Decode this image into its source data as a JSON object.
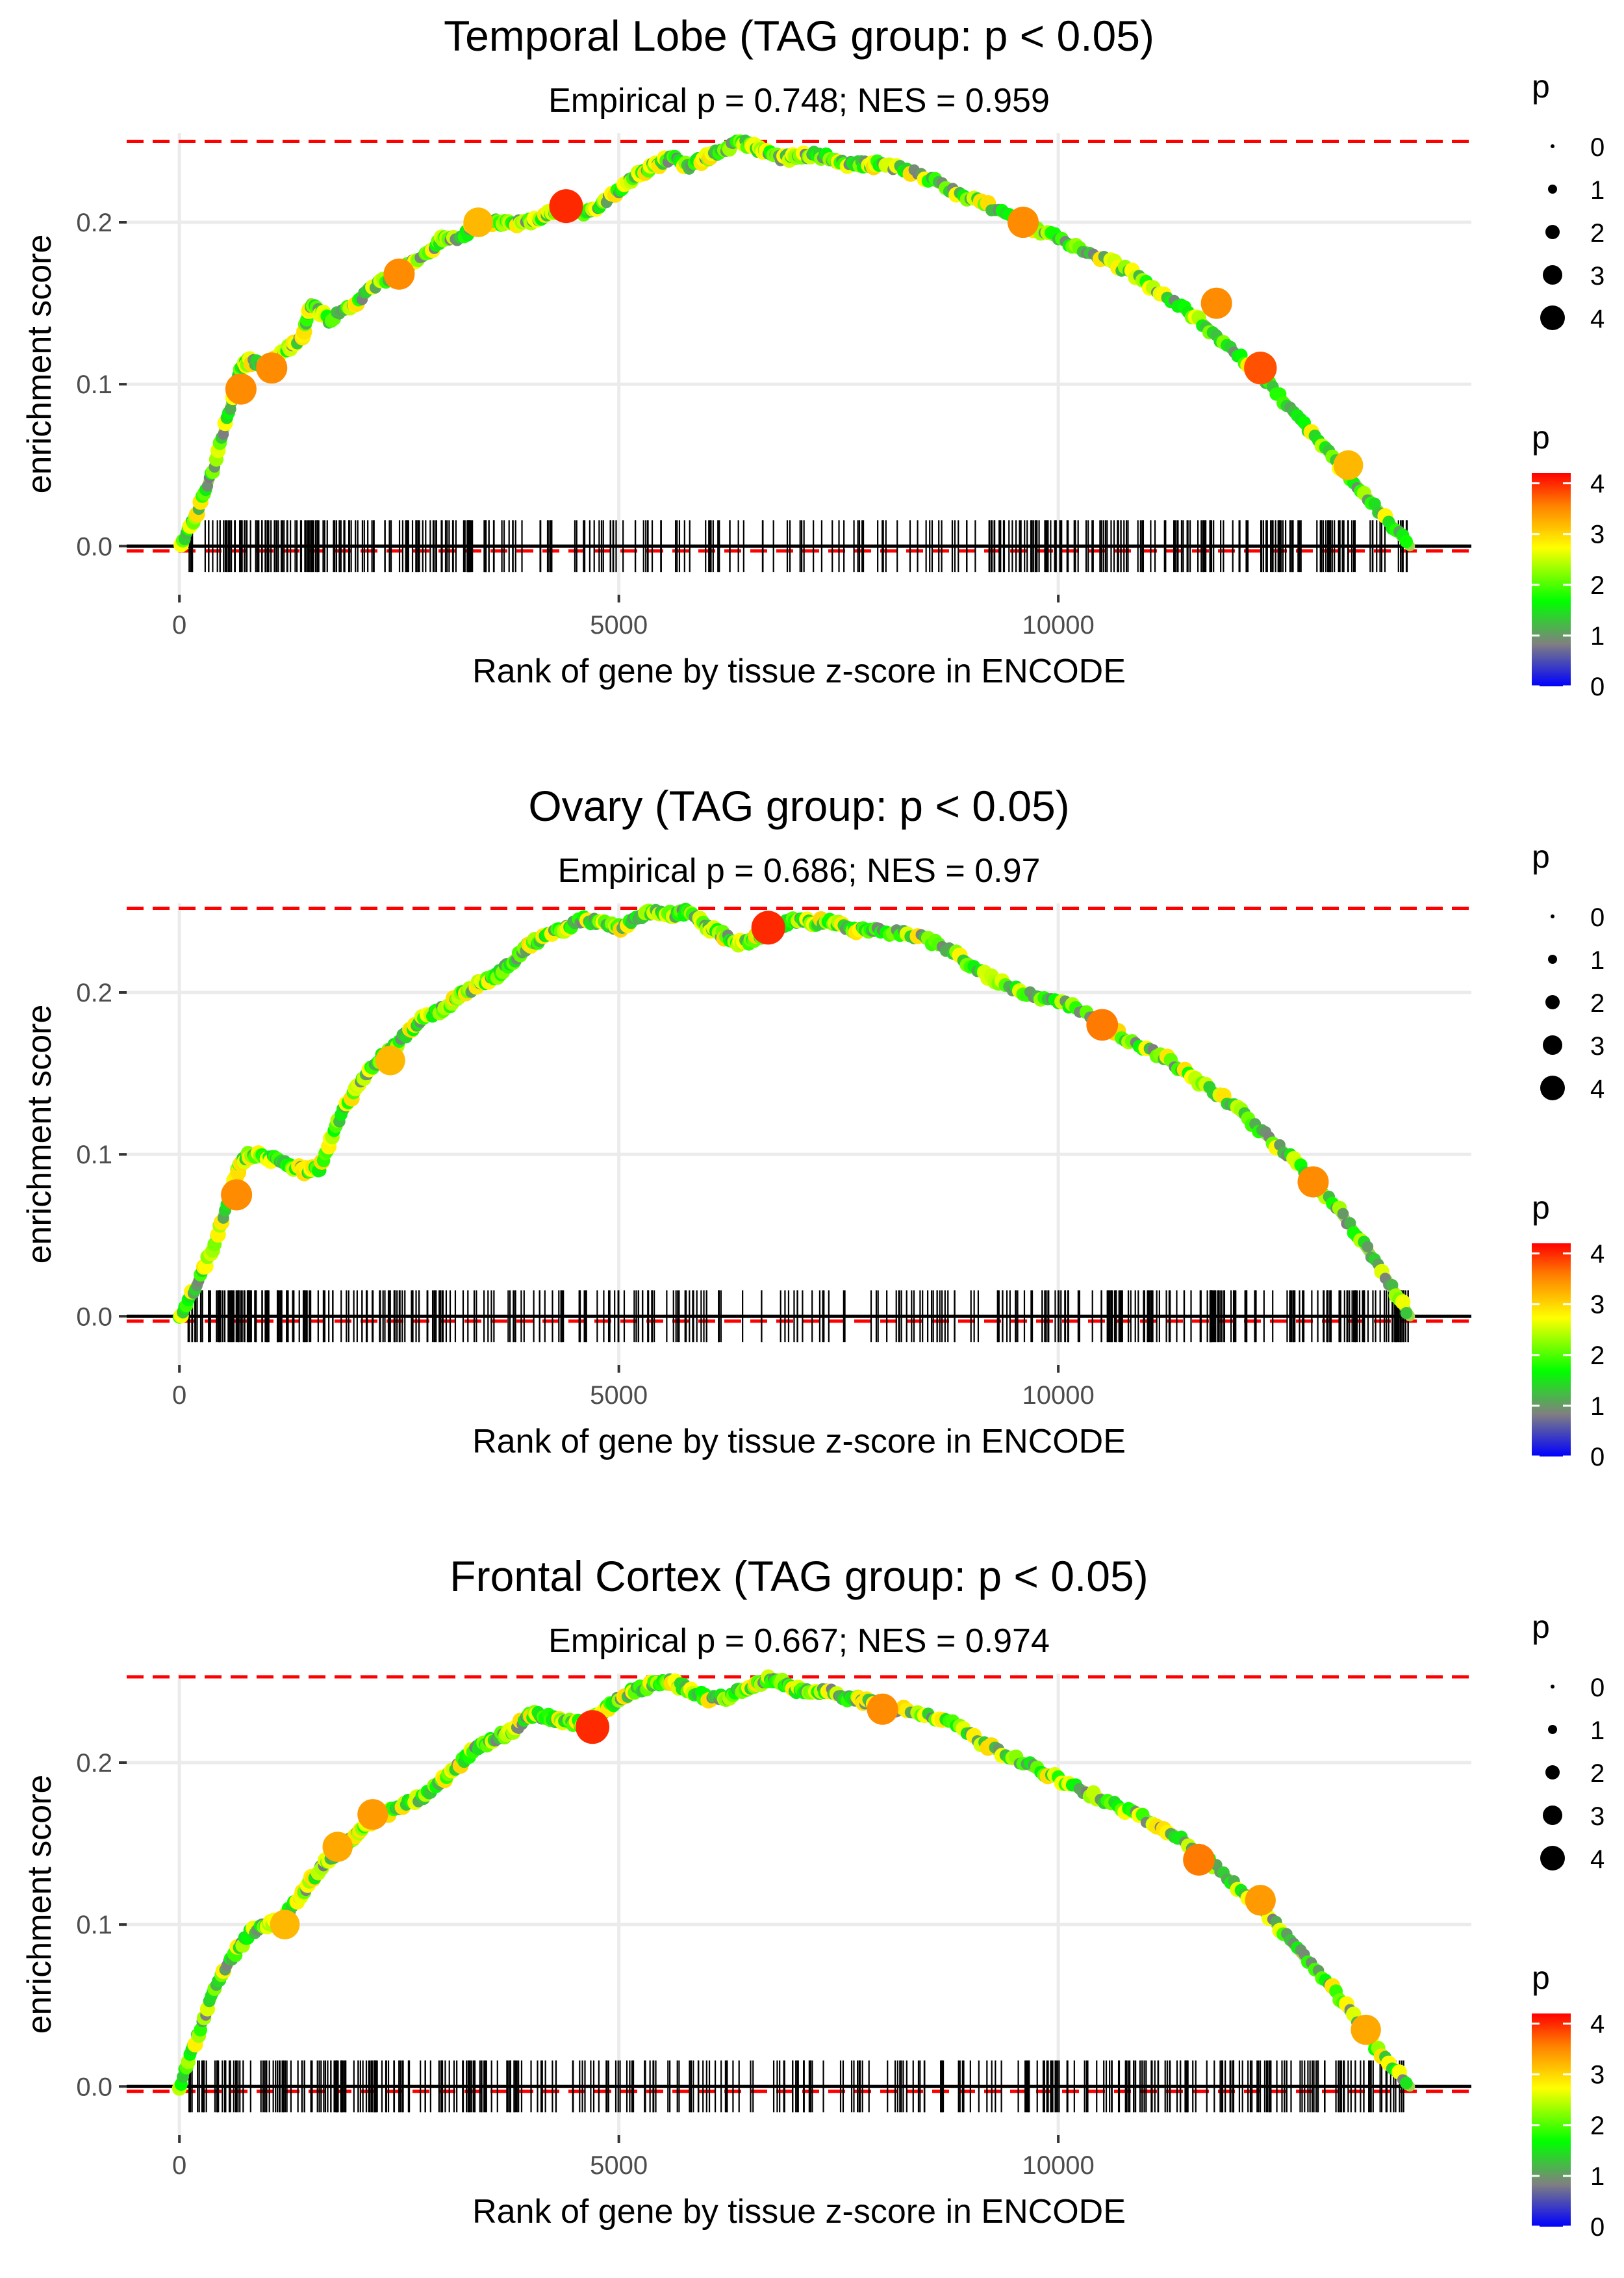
{
  "figure": {
    "shared": {
      "xlabel": "Rank of gene by tissue z-score in ENCODE",
      "ylabel": "enrichment score",
      "xlim": [
        -600,
        14700
      ],
      "ylim": [
        -0.03,
        0.255
      ],
      "x_ticks": [
        0,
        5000,
        10000
      ],
      "y_ticks": [
        0.0,
        0.1,
        0.2
      ],
      "size_legend_title": "p",
      "size_legend_values": [
        "0",
        "1",
        "2",
        "3",
        "4"
      ],
      "color_legend_title": "p",
      "color_legend_ticks": [
        "0",
        "1",
        "2",
        "3",
        "4"
      ],
      "color_scale": [
        "#0000ff",
        "#808080",
        "#00ff00",
        "#ffff00",
        "#ff8000",
        "#ff0000"
      ],
      "line_color": "#000000",
      "ref_line_color": "#ff0000"
    }
  },
  "chart_data": [
    {
      "type": "line",
      "title": "Temporal Lobe (TAG group: p < 0.05)",
      "subtitle": "Empirical p = 0.748; NES = 0.959",
      "xlabel": "Rank of gene by tissue z-score in ENCODE",
      "ylabel": "enrichment score",
      "ylim": [
        -0.03,
        0.255
      ],
      "max_es_line": 0.25,
      "min_es_line": -0.003,
      "curve": {
        "x": [
          0,
          200,
          400,
          600,
          700,
          800,
          1000,
          1200,
          1400,
          1500,
          1700,
          2000,
          2200,
          2500,
          2800,
          3000,
          3200,
          3400,
          3600,
          3800,
          4000,
          4200,
          4400,
          4600,
          4800,
          5000,
          5200,
          5400,
          5600,
          5800,
          6000,
          6200,
          6400,
          6600,
          6800,
          7000,
          7200,
          7400,
          7600,
          7800,
          8000,
          8400,
          8800,
          9200,
          9600,
          10000,
          10400,
          10800,
          11200,
          11600,
          12000,
          12400,
          12800,
          13200,
          13600,
          14000
        ],
        "y": [
          0.0,
          0.02,
          0.05,
          0.09,
          0.11,
          0.115,
          0.11,
          0.12,
          0.13,
          0.15,
          0.14,
          0.15,
          0.16,
          0.17,
          0.18,
          0.19,
          0.19,
          0.2,
          0.2,
          0.2,
          0.2,
          0.205,
          0.21,
          0.205,
          0.21,
          0.22,
          0.23,
          0.235,
          0.24,
          0.235,
          0.24,
          0.245,
          0.25,
          0.245,
          0.24,
          0.24,
          0.242,
          0.24,
          0.236,
          0.236,
          0.236,
          0.23,
          0.22,
          0.21,
          0.2,
          0.19,
          0.18,
          0.17,
          0.155,
          0.14,
          0.12,
          0.1,
          0.075,
          0.05,
          0.025,
          0.0
        ]
      },
      "highlight_points": [
        {
          "x": 700,
          "y": 0.097,
          "p": 3.5
        },
        {
          "x": 1050,
          "y": 0.11,
          "p": 3.5
        },
        {
          "x": 2500,
          "y": 0.168,
          "p": 3.5
        },
        {
          "x": 3400,
          "y": 0.2,
          "p": 3.2
        },
        {
          "x": 4400,
          "y": 0.21,
          "p": 4.0
        },
        {
          "x": 9600,
          "y": 0.2,
          "p": 3.5
        },
        {
          "x": 11800,
          "y": 0.15,
          "p": 3.5
        },
        {
          "x": 12300,
          "y": 0.11,
          "p": 3.8
        },
        {
          "x": 13300,
          "y": 0.05,
          "p": 3.2
        }
      ],
      "gene_rank_ticks_density": [
        {
          "from": 100,
          "to": 2200,
          "count": 90
        },
        {
          "from": 2200,
          "to": 3800,
          "count": 60
        },
        {
          "from": 3800,
          "to": 7000,
          "count": 55
        },
        {
          "from": 7000,
          "to": 9500,
          "count": 45
        },
        {
          "from": 9500,
          "to": 14000,
          "count": 150
        }
      ]
    },
    {
      "type": "line",
      "title": "Ovary (TAG group: p < 0.05)",
      "subtitle": "Empirical p = 0.686; NES = 0.97",
      "xlabel": "Rank of gene by tissue z-score in ENCODE",
      "ylabel": "enrichment score",
      "ylim": [
        -0.03,
        0.255
      ],
      "max_es_line": 0.252,
      "min_es_line": -0.003,
      "curve": {
        "x": [
          0,
          200,
          400,
          600,
          700,
          800,
          1000,
          1200,
          1400,
          1600,
          1800,
          2000,
          2200,
          2400,
          2600,
          2800,
          3000,
          3200,
          3400,
          3600,
          3800,
          4000,
          4200,
          4400,
          4600,
          4800,
          5000,
          5200,
          5400,
          5600,
          5800,
          6000,
          6200,
          6400,
          6600,
          6800,
          7000,
          7200,
          7400,
          7600,
          7800,
          8000,
          8400,
          8800,
          9200,
          9600,
          10000,
          10400,
          10800,
          11200,
          11600,
          12000,
          12400,
          12800,
          13200,
          13600,
          14000
        ],
        "y": [
          0.0,
          0.02,
          0.045,
          0.08,
          0.095,
          0.1,
          0.098,
          0.095,
          0.09,
          0.092,
          0.12,
          0.14,
          0.155,
          0.165,
          0.175,
          0.185,
          0.19,
          0.198,
          0.205,
          0.21,
          0.22,
          0.23,
          0.235,
          0.24,
          0.245,
          0.243,
          0.24,
          0.245,
          0.25,
          0.248,
          0.25,
          0.24,
          0.235,
          0.23,
          0.235,
          0.24,
          0.245,
          0.243,
          0.244,
          0.24,
          0.238,
          0.238,
          0.235,
          0.225,
          0.21,
          0.2,
          0.195,
          0.185,
          0.17,
          0.16,
          0.145,
          0.13,
          0.11,
          0.09,
          0.065,
          0.035,
          0.0
        ]
      },
      "highlight_points": [
        {
          "x": 650,
          "y": 0.075,
          "p": 3.5
        },
        {
          "x": 2400,
          "y": 0.158,
          "p": 3.2
        },
        {
          "x": 6700,
          "y": 0.24,
          "p": 4.0
        },
        {
          "x": 10500,
          "y": 0.18,
          "p": 3.6
        },
        {
          "x": 12900,
          "y": 0.083,
          "p": 3.5
        }
      ],
      "gene_rank_ticks_density": [
        {
          "from": 100,
          "to": 1000,
          "count": 55
        },
        {
          "from": 1000,
          "to": 3000,
          "count": 75
        },
        {
          "from": 3000,
          "to": 5500,
          "count": 55
        },
        {
          "from": 5500,
          "to": 9500,
          "count": 70
        },
        {
          "from": 9500,
          "to": 14000,
          "count": 160
        }
      ]
    },
    {
      "type": "line",
      "title": "Frontal Cortex (TAG group: p < 0.05)",
      "subtitle": "Empirical p = 0.667; NES = 0.974",
      "xlabel": "Rank of gene by tissue z-score in ENCODE",
      "ylabel": "enrichment score",
      "ylim": [
        -0.03,
        0.255
      ],
      "max_es_line": 0.253,
      "min_es_line": -0.003,
      "curve": {
        "x": [
          0,
          200,
          400,
          600,
          800,
          1000,
          1200,
          1400,
          1600,
          1800,
          2000,
          2200,
          2400,
          2600,
          2800,
          3000,
          3200,
          3400,
          3600,
          3800,
          4000,
          4200,
          4400,
          4600,
          4800,
          5000,
          5200,
          5400,
          5600,
          5800,
          6000,
          6200,
          6400,
          6600,
          6800,
          7000,
          7200,
          7400,
          7600,
          7800,
          8000,
          8400,
          8800,
          9200,
          9600,
          10000,
          10400,
          10800,
          11200,
          11600,
          12000,
          12400,
          12800,
          13200,
          13600,
          14000
        ],
        "y": [
          0.0,
          0.03,
          0.06,
          0.08,
          0.095,
          0.1,
          0.105,
          0.12,
          0.135,
          0.145,
          0.155,
          0.165,
          0.17,
          0.175,
          0.18,
          0.19,
          0.2,
          0.21,
          0.215,
          0.22,
          0.23,
          0.228,
          0.225,
          0.224,
          0.23,
          0.24,
          0.245,
          0.248,
          0.25,
          0.245,
          0.24,
          0.24,
          0.245,
          0.25,
          0.252,
          0.245,
          0.243,
          0.244,
          0.24,
          0.238,
          0.235,
          0.23,
          0.225,
          0.21,
          0.2,
          0.19,
          0.18,
          0.17,
          0.16,
          0.145,
          0.125,
          0.105,
          0.08,
          0.055,
          0.025,
          0.0
        ]
      },
      "highlight_points": [
        {
          "x": 1200,
          "y": 0.1,
          "p": 3.2
        },
        {
          "x": 1800,
          "y": 0.148,
          "p": 3.3
        },
        {
          "x": 2200,
          "y": 0.168,
          "p": 3.4
        },
        {
          "x": 4700,
          "y": 0.222,
          "p": 4.0
        },
        {
          "x": 8000,
          "y": 0.233,
          "p": 3.5
        },
        {
          "x": 11600,
          "y": 0.14,
          "p": 3.6
        },
        {
          "x": 12300,
          "y": 0.115,
          "p": 3.4
        },
        {
          "x": 13500,
          "y": 0.035,
          "p": 3.3
        }
      ],
      "gene_rank_ticks_density": [
        {
          "from": 100,
          "to": 2500,
          "count": 100
        },
        {
          "from": 2500,
          "to": 5000,
          "count": 70
        },
        {
          "from": 5000,
          "to": 9500,
          "count": 90
        },
        {
          "from": 9500,
          "to": 14000,
          "count": 140
        }
      ]
    }
  ]
}
